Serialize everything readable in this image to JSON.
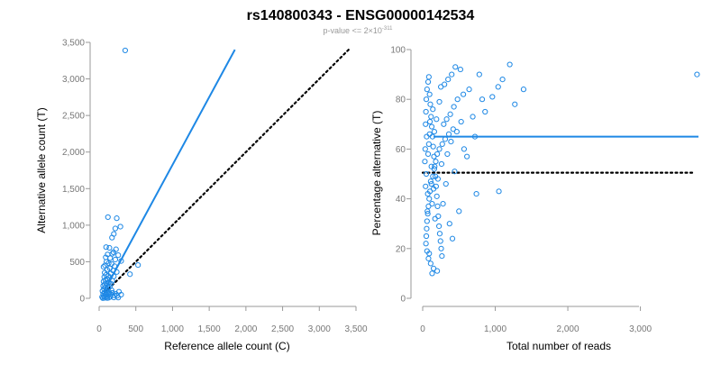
{
  "chart_data": {
    "title": "rs140800343 - ENSG00000142534",
    "subtitle": {
      "prefix": "p-value <= 2",
      "times": "×",
      "base": "10",
      "exponent": "-311"
    },
    "colors": {
      "points": "#1e88e5",
      "fit_line": "#1e88e5",
      "reference_line": "#000000"
    },
    "panels": [
      {
        "type": "scatter",
        "xlabel": "Reference allele count (C)",
        "ylabel": "Alternative allele count (T)",
        "xlim": [
          0,
          3500
        ],
        "ylim": [
          0,
          3500
        ],
        "xticks": [
          "0",
          "500",
          "1,000",
          "1,500",
          "2,000",
          "2,500",
          "3,000",
          "3,500"
        ],
        "yticks": [
          "0",
          "500",
          "1,000",
          "1,500",
          "2,000",
          "2,500",
          "3,000",
          "3,500"
        ],
        "fit_line": {
          "style": "solid",
          "from": [
            80,
            120
          ],
          "to": [
            1850,
            3400
          ]
        },
        "reference_line": {
          "style": "dotted",
          "from": [
            80,
            80
          ],
          "to": [
            3400,
            3400
          ]
        },
        "points": [
          [
            355,
            3390
          ],
          [
            120,
            1110
          ],
          [
            240,
            1095
          ],
          [
            290,
            980
          ],
          [
            220,
            955
          ],
          [
            200,
            880
          ],
          [
            175,
            830
          ],
          [
            95,
            700
          ],
          [
            140,
            690
          ],
          [
            230,
            670
          ],
          [
            195,
            630
          ],
          [
            180,
            610
          ],
          [
            115,
            600
          ],
          [
            260,
            590
          ],
          [
            90,
            560
          ],
          [
            150,
            550
          ],
          [
            220,
            530
          ],
          [
            300,
            510
          ],
          [
            100,
            500
          ],
          [
            130,
            480
          ],
          [
            170,
            470
          ],
          [
            530,
            455
          ],
          [
            80,
            450
          ],
          [
            210,
            440
          ],
          [
            60,
            430
          ],
          [
            145,
            410
          ],
          [
            110,
            390
          ],
          [
            190,
            380
          ],
          [
            240,
            360
          ],
          [
            75,
            350
          ],
          [
            160,
            340
          ],
          [
            420,
            330
          ],
          [
            95,
            320
          ],
          [
            125,
            305
          ],
          [
            200,
            300
          ],
          [
            70,
            290
          ],
          [
            140,
            280
          ],
          [
            110,
            265
          ],
          [
            85,
            250
          ],
          [
            180,
            240
          ],
          [
            60,
            230
          ],
          [
            130,
            220
          ],
          [
            95,
            210
          ],
          [
            160,
            200
          ],
          [
            75,
            190
          ],
          [
            115,
            180
          ],
          [
            55,
            170
          ],
          [
            145,
            160
          ],
          [
            85,
            150
          ],
          [
            125,
            140
          ],
          [
            65,
            130
          ],
          [
            105,
            120
          ],
          [
            170,
            110
          ],
          [
            45,
            100
          ],
          [
            95,
            95
          ],
          [
            135,
            85
          ],
          [
            75,
            80
          ],
          [
            115,
            70
          ],
          [
            55,
            60
          ],
          [
            160,
            55
          ],
          [
            85,
            50
          ],
          [
            125,
            45
          ],
          [
            210,
            40
          ],
          [
            245,
            35
          ],
          [
            65,
            30
          ],
          [
            105,
            25
          ],
          [
            150,
            20
          ],
          [
            40,
            18
          ],
          [
            90,
            15
          ],
          [
            200,
            12
          ],
          [
            260,
            10
          ],
          [
            130,
            8
          ],
          [
            70,
            6
          ],
          [
            110,
            4
          ],
          [
            50,
            3
          ],
          [
            230,
            60
          ],
          [
            180,
            75
          ],
          [
            270,
            90
          ],
          [
            300,
            50
          ],
          [
            140,
            65
          ]
        ]
      },
      {
        "type": "scatter",
        "xlabel": "Total number of reads",
        "ylabel": "Percentage alternative (T)",
        "xlim": [
          0,
          3800
        ],
        "ylim": [
          0,
          100
        ],
        "xticks": [
          "0",
          "1,000",
          "2,000",
          "3,000"
        ],
        "yticks": [
          "0",
          "20",
          "40",
          "60",
          "80",
          "100"
        ],
        "fit_line": {
          "style": "solid",
          "from": [
            150,
            65
          ],
          "to": [
            3800,
            65
          ]
        },
        "reference_line": {
          "style": "dotted",
          "from": [
            0,
            50.5
          ],
          "to": [
            3750,
            50.5
          ]
        },
        "points": [
          [
            3780,
            90
          ],
          [
            1200,
            94
          ],
          [
            1390,
            84
          ],
          [
            1100,
            88
          ],
          [
            1040,
            85
          ],
          [
            1270,
            78
          ],
          [
            960,
            81
          ],
          [
            780,
            90
          ],
          [
            860,
            75
          ],
          [
            820,
            80
          ],
          [
            740,
            42
          ],
          [
            1050,
            43
          ],
          [
            610,
            57
          ],
          [
            450,
            93
          ],
          [
            520,
            92
          ],
          [
            400,
            90
          ],
          [
            350,
            88
          ],
          [
            300,
            86
          ],
          [
            250,
            85
          ],
          [
            560,
            82
          ],
          [
            480,
            80
          ],
          [
            430,
            77
          ],
          [
            380,
            74
          ],
          [
            330,
            72
          ],
          [
            290,
            70
          ],
          [
            420,
            68
          ],
          [
            360,
            66
          ],
          [
            310,
            64
          ],
          [
            270,
            62
          ],
          [
            230,
            60
          ],
          [
            200,
            58
          ],
          [
            180,
            55
          ],
          [
            160,
            52
          ],
          [
            140,
            49
          ],
          [
            120,
            46
          ],
          [
            100,
            43
          ],
          [
            90,
            40
          ],
          [
            80,
            37
          ],
          [
            70,
            34
          ],
          [
            60,
            31
          ],
          [
            55,
            28
          ],
          [
            50,
            25
          ],
          [
            45,
            22
          ],
          [
            60,
            19
          ],
          [
            80,
            16
          ],
          [
            110,
            14
          ],
          [
            150,
            12
          ],
          [
            200,
            11
          ],
          [
            130,
            10
          ],
          [
            90,
            18
          ],
          [
            40,
            70
          ],
          [
            45,
            75
          ],
          [
            50,
            80
          ],
          [
            60,
            84
          ],
          [
            75,
            87
          ],
          [
            85,
            89
          ],
          [
            95,
            82
          ],
          [
            105,
            78
          ],
          [
            115,
            73
          ],
          [
            125,
            69
          ],
          [
            135,
            65
          ],
          [
            145,
            61
          ],
          [
            155,
            57
          ],
          [
            165,
            53
          ],
          [
            175,
            49
          ],
          [
            185,
            45
          ],
          [
            195,
            41
          ],
          [
            205,
            37
          ],
          [
            215,
            33
          ],
          [
            225,
            29
          ],
          [
            235,
            26
          ],
          [
            245,
            23
          ],
          [
            255,
            20
          ],
          [
            265,
            17
          ],
          [
            30,
            55
          ],
          [
            35,
            60
          ],
          [
            40,
            45
          ],
          [
            50,
            50
          ],
          [
            55,
            65
          ],
          [
            65,
            35
          ],
          [
            70,
            42
          ],
          [
            75,
            58
          ],
          [
            85,
            62
          ],
          [
            95,
            66
          ],
          [
            100,
            71
          ],
          [
            110,
            47
          ],
          [
            120,
            53
          ],
          [
            130,
            38
          ],
          [
            140,
            76
          ],
          [
            150,
            44
          ],
          [
            160,
            67
          ],
          [
            170,
            32
          ],
          [
            190,
            72
          ],
          [
            210,
            48
          ],
          [
            230,
            79
          ],
          [
            260,
            54
          ],
          [
            280,
            38
          ],
          [
            320,
            46
          ],
          [
            340,
            58
          ],
          [
            370,
            30
          ],
          [
            390,
            63
          ],
          [
            410,
            24
          ],
          [
            440,
            51
          ],
          [
            470,
            67
          ],
          [
            500,
            35
          ],
          [
            530,
            71
          ],
          [
            570,
            60
          ],
          [
            640,
            84
          ],
          [
            690,
            73
          ],
          [
            720,
            65
          ]
        ]
      }
    ]
  }
}
